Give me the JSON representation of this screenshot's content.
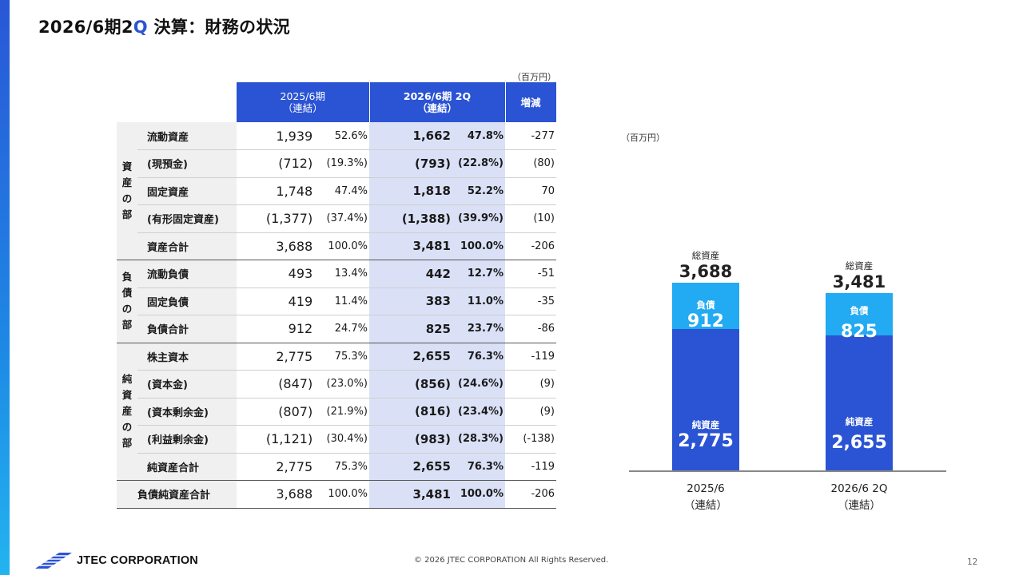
{
  "title": {
    "main": "2026/6期2",
    "q": "Q",
    "rest": " 決算：財務の状況"
  },
  "unit": "（百万円）",
  "table": {
    "headers": [
      {
        "line1": "2025/6期",
        "line2": "（連結）"
      },
      {
        "line1": "2026/6期  2Q",
        "line2": "（連結）"
      },
      {
        "line1": "増減",
        "line2": ""
      }
    ],
    "groups": {
      "assets": "資\n産\nの\n部",
      "liabilities": "負\n債\nの\n部",
      "equity": "純\n資\n産\nの\n部"
    },
    "rows": [
      {
        "label": "流動資産",
        "v1": "1,939",
        "p1": "52.6%",
        "v2": "1,662",
        "p2": "47.8%",
        "chg": "-277"
      },
      {
        "label": "(現預金)",
        "v1": "(712)",
        "p1": "(19.3%)",
        "v2": "(793)",
        "p2": "(22.8%)",
        "chg": "(80)"
      },
      {
        "label": "固定資産",
        "v1": "1,748",
        "p1": "47.4%",
        "v2": "1,818",
        "p2": "52.2%",
        "chg": "70"
      },
      {
        "label": "(有形固定資産)",
        "v1": "(1,377)",
        "p1": "(37.4%)",
        "v2": "(1,388)",
        "p2": "(39.9%)",
        "chg": "(10)"
      },
      {
        "label": "資産合計",
        "v1": "3,688",
        "p1": "100.0%",
        "v2": "3,481",
        "p2": "100.0%",
        "chg": "-206"
      },
      {
        "label": "流動負債",
        "v1": "493",
        "p1": "13.4%",
        "v2": "442",
        "p2": "12.7%",
        "chg": "-51"
      },
      {
        "label": "固定負債",
        "v1": "419",
        "p1": "11.4%",
        "v2": "383",
        "p2": "11.0%",
        "chg": "-35"
      },
      {
        "label": "負債合計",
        "v1": "912",
        "p1": "24.7%",
        "v2": "825",
        "p2": "23.7%",
        "chg": "-86"
      },
      {
        "label": "株主資本",
        "v1": "2,775",
        "p1": "75.3%",
        "v2": "2,655",
        "p2": "76.3%",
        "chg": "-119"
      },
      {
        "label": "(資本金)",
        "v1": "(847)",
        "p1": "(23.0%)",
        "v2": "(856)",
        "p2": "(24.6%)",
        "chg": "(9)"
      },
      {
        "label": "(資本剰余金)",
        "v1": "(807)",
        "p1": "(21.9%)",
        "v2": "(816)",
        "p2": "(23.4%)",
        "chg": "(9)"
      },
      {
        "label": "(利益剰余金)",
        "v1": "(1,121)",
        "p1": "(30.4%)",
        "v2": "(983)",
        "p2": "(28.3%)",
        "chg": "(-138)"
      },
      {
        "label": "純資産合計",
        "v1": "2,775",
        "p1": "75.3%",
        "v2": "2,655",
        "p2": "76.3%",
        "chg": "-119"
      },
      {
        "label": "負債純資産合計",
        "v1": "3,688",
        "p1": "100.0%",
        "v2": "3,481",
        "p2": "100.0%",
        "chg": "-206"
      }
    ]
  },
  "chart_data": {
    "type": "bar",
    "stacked": true,
    "unit": "（百万円）",
    "categories": [
      "2025/6\n（連結）",
      "2026/6 2Q\n（連結）"
    ],
    "series": [
      {
        "name": "純資産",
        "values": [
          2775,
          2655
        ],
        "color": "#2b54d4"
      },
      {
        "name": "負債",
        "values": [
          912,
          825
        ],
        "color": "#22aaf2"
      }
    ],
    "totals": {
      "name": "総資産",
      "values": [
        3688,
        3481
      ]
    },
    "labels": {
      "equity": [
        "2,775",
        "2,655"
      ],
      "liabilities": [
        "912",
        "825"
      ],
      "totals": [
        "3,688",
        "3,481"
      ]
    },
    "ylim": [
      0,
      3688
    ]
  },
  "footer": {
    "logo_text": "JTEC CORPORATION",
    "copyright": "© 2026 JTEC CORPORATION All Rights Reserved.",
    "page": "12"
  },
  "colors": {
    "accent": "#2b54d4",
    "light_accent": "#22aaf2",
    "highlight": "#dae1f7"
  }
}
